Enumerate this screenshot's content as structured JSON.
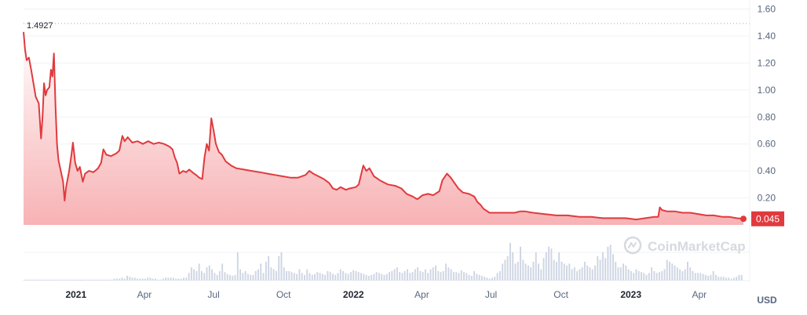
{
  "colors": {
    "line": "#e03a3e",
    "badge": "#e03a3e",
    "volume": "#cfd6e4",
    "grid": "#eff2f5"
  },
  "chart_data": {
    "type": "area",
    "x_axis_labels": [
      {
        "label": "2021",
        "year": true,
        "date": "2021-01-01"
      },
      {
        "label": "Apr",
        "year": false,
        "date": "2021-04-01"
      },
      {
        "label": "Jul",
        "year": false,
        "date": "2021-07-01"
      },
      {
        "label": "Oct",
        "year": false,
        "date": "2021-10-01"
      },
      {
        "label": "2022",
        "year": true,
        "date": "2022-01-01"
      },
      {
        "label": "Apr",
        "year": false,
        "date": "2022-04-01"
      },
      {
        "label": "Jul",
        "year": false,
        "date": "2022-07-01"
      },
      {
        "label": "Oct",
        "year": false,
        "date": "2022-10-01"
      },
      {
        "label": "2023",
        "year": true,
        "date": "2023-01-01"
      },
      {
        "label": "Apr",
        "year": false,
        "date": "2023-04-01"
      }
    ],
    "y_ticks": [
      0.2,
      0.4,
      0.6,
      0.8,
      1.0,
      1.2,
      1.4,
      1.6
    ],
    "y_tick_labels": [
      "0.20",
      "0.40",
      "0.60",
      "0.80",
      "1.00",
      "1.20",
      "1.40",
      "1.60"
    ],
    "ylim": [
      0,
      1.6
    ],
    "xlim": [
      "2020-10-24",
      "2023-05-29"
    ],
    "unit": "USD",
    "max_marker": {
      "value": 1.4927,
      "label": "1.4927"
    },
    "last_value": {
      "value": 0.045,
      "label": "0.045"
    },
    "grid": true,
    "series": [
      {
        "type": "line",
        "points": [
          [
            "2020-10-24",
            1.43
          ],
          [
            "2020-10-26",
            1.3
          ],
          [
            "2020-10-28",
            1.22
          ],
          [
            "2020-10-31",
            1.24
          ],
          [
            "2020-11-03",
            1.15
          ],
          [
            "2020-11-06",
            1.05
          ],
          [
            "2020-11-09",
            0.95
          ],
          [
            "2020-11-13",
            0.9
          ],
          [
            "2020-11-16",
            0.64
          ],
          [
            "2020-11-18",
            0.8
          ],
          [
            "2020-11-20",
            1.05
          ],
          [
            "2020-11-22",
            0.96
          ],
          [
            "2020-11-24",
            1.0
          ],
          [
            "2020-11-27",
            1.02
          ],
          [
            "2020-11-29",
            1.15
          ],
          [
            "2020-12-01",
            1.1
          ],
          [
            "2020-12-03",
            1.27
          ],
          [
            "2020-12-05",
            0.88
          ],
          [
            "2020-12-07",
            0.6
          ],
          [
            "2020-12-09",
            0.48
          ],
          [
            "2020-12-12",
            0.4
          ],
          [
            "2020-12-15",
            0.32
          ],
          [
            "2020-12-17",
            0.18
          ],
          [
            "2020-12-19",
            0.28
          ],
          [
            "2020-12-23",
            0.4
          ],
          [
            "2020-12-26",
            0.52
          ],
          [
            "2020-12-28",
            0.61
          ],
          [
            "2020-12-31",
            0.46
          ],
          [
            "2021-01-03",
            0.4
          ],
          [
            "2021-01-06",
            0.43
          ],
          [
            "2021-01-10",
            0.32
          ],
          [
            "2021-01-13",
            0.38
          ],
          [
            "2021-01-18",
            0.4
          ],
          [
            "2021-01-24",
            0.39
          ],
          [
            "2021-01-30",
            0.42
          ],
          [
            "2021-02-03",
            0.46
          ],
          [
            "2021-02-06",
            0.56
          ],
          [
            "2021-02-10",
            0.52
          ],
          [
            "2021-02-16",
            0.51
          ],
          [
            "2021-02-23",
            0.53
          ],
          [
            "2021-02-27",
            0.55
          ],
          [
            "2021-03-03",
            0.66
          ],
          [
            "2021-03-06",
            0.62
          ],
          [
            "2021-03-10",
            0.65
          ],
          [
            "2021-03-16",
            0.61
          ],
          [
            "2021-03-23",
            0.62
          ],
          [
            "2021-03-30",
            0.6
          ],
          [
            "2021-04-06",
            0.62
          ],
          [
            "2021-04-13",
            0.6
          ],
          [
            "2021-04-20",
            0.61
          ],
          [
            "2021-04-27",
            0.6
          ],
          [
            "2021-05-04",
            0.58
          ],
          [
            "2021-05-08",
            0.56
          ],
          [
            "2021-05-11",
            0.5
          ],
          [
            "2021-05-14",
            0.46
          ],
          [
            "2021-05-17",
            0.38
          ],
          [
            "2021-05-22",
            0.4
          ],
          [
            "2021-05-26",
            0.39
          ],
          [
            "2021-05-30",
            0.41
          ],
          [
            "2021-06-03",
            0.39
          ],
          [
            "2021-06-08",
            0.37
          ],
          [
            "2021-06-12",
            0.35
          ],
          [
            "2021-06-16",
            0.34
          ],
          [
            "2021-06-19",
            0.5
          ],
          [
            "2021-06-22",
            0.6
          ],
          [
            "2021-06-25",
            0.55
          ],
          [
            "2021-06-28",
            0.79
          ],
          [
            "2021-07-01",
            0.7
          ],
          [
            "2021-07-04",
            0.6
          ],
          [
            "2021-07-08",
            0.54
          ],
          [
            "2021-07-12",
            0.52
          ],
          [
            "2021-07-17",
            0.47
          ],
          [
            "2021-07-24",
            0.44
          ],
          [
            "2021-07-31",
            0.42
          ],
          [
            "2021-08-10",
            0.41
          ],
          [
            "2021-08-20",
            0.4
          ],
          [
            "2021-08-31",
            0.39
          ],
          [
            "2021-09-10",
            0.38
          ],
          [
            "2021-09-20",
            0.37
          ],
          [
            "2021-09-30",
            0.36
          ],
          [
            "2021-10-10",
            0.35
          ],
          [
            "2021-10-20",
            0.35
          ],
          [
            "2021-10-30",
            0.37
          ],
          [
            "2021-11-04",
            0.4
          ],
          [
            "2021-11-09",
            0.38
          ],
          [
            "2021-11-16",
            0.36
          ],
          [
            "2021-11-23",
            0.34
          ],
          [
            "2021-11-30",
            0.31
          ],
          [
            "2021-12-05",
            0.27
          ],
          [
            "2021-12-10",
            0.26
          ],
          [
            "2021-12-15",
            0.28
          ],
          [
            "2021-12-22",
            0.26
          ],
          [
            "2021-12-27",
            0.27
          ],
          [
            "2022-01-04",
            0.28
          ],
          [
            "2022-01-08",
            0.3
          ],
          [
            "2022-01-14",
            0.44
          ],
          [
            "2022-01-18",
            0.4
          ],
          [
            "2022-01-22",
            0.42
          ],
          [
            "2022-01-28",
            0.36
          ],
          [
            "2022-02-05",
            0.33
          ],
          [
            "2022-02-15",
            0.3
          ],
          [
            "2022-02-25",
            0.29
          ],
          [
            "2022-03-05",
            0.27
          ],
          [
            "2022-03-12",
            0.23
          ],
          [
            "2022-03-20",
            0.21
          ],
          [
            "2022-03-26",
            0.19
          ],
          [
            "2022-04-02",
            0.22
          ],
          [
            "2022-04-09",
            0.23
          ],
          [
            "2022-04-16",
            0.22
          ],
          [
            "2022-04-24",
            0.25
          ],
          [
            "2022-04-28",
            0.33
          ],
          [
            "2022-05-04",
            0.38
          ],
          [
            "2022-05-09",
            0.35
          ],
          [
            "2022-05-14",
            0.31
          ],
          [
            "2022-05-19",
            0.27
          ],
          [
            "2022-05-25",
            0.24
          ],
          [
            "2022-06-02",
            0.23
          ],
          [
            "2022-06-09",
            0.21
          ],
          [
            "2022-06-13",
            0.17
          ],
          [
            "2022-06-17",
            0.15
          ],
          [
            "2022-06-21",
            0.12
          ],
          [
            "2022-06-29",
            0.09
          ],
          [
            "2022-07-09",
            0.09
          ],
          [
            "2022-07-20",
            0.09
          ],
          [
            "2022-08-01",
            0.09
          ],
          [
            "2022-08-08",
            0.1
          ],
          [
            "2022-08-15",
            0.1
          ],
          [
            "2022-08-25",
            0.09
          ],
          [
            "2022-09-10",
            0.08
          ],
          [
            "2022-09-25",
            0.07
          ],
          [
            "2022-10-10",
            0.07
          ],
          [
            "2022-10-25",
            0.06
          ],
          [
            "2022-11-10",
            0.06
          ],
          [
            "2022-11-25",
            0.05
          ],
          [
            "2022-12-10",
            0.05
          ],
          [
            "2022-12-25",
            0.05
          ],
          [
            "2023-01-08",
            0.04
          ],
          [
            "2023-01-20",
            0.05
          ],
          [
            "2023-02-01",
            0.06
          ],
          [
            "2023-02-06",
            0.06
          ],
          [
            "2023-02-08",
            0.13
          ],
          [
            "2023-02-11",
            0.11
          ],
          [
            "2023-02-18",
            0.1
          ],
          [
            "2023-02-28",
            0.1
          ],
          [
            "2023-03-10",
            0.09
          ],
          [
            "2023-03-20",
            0.09
          ],
          [
            "2023-03-31",
            0.08
          ],
          [
            "2023-04-10",
            0.07
          ],
          [
            "2023-04-20",
            0.07
          ],
          [
            "2023-05-01",
            0.06
          ],
          [
            "2023-05-10",
            0.06
          ],
          [
            "2023-05-20",
            0.05
          ],
          [
            "2023-05-29",
            0.045
          ]
        ]
      }
    ],
    "volume_bars": [
      1,
      1,
      1,
      1,
      1,
      1,
      1,
      1,
      1,
      1,
      1,
      1,
      1,
      1,
      1,
      1,
      1,
      1,
      1,
      1,
      1,
      1,
      1,
      1,
      1,
      1,
      1,
      1,
      1,
      1,
      1,
      1,
      1,
      1,
      1,
      2,
      2,
      2,
      3,
      2,
      5,
      4,
      3,
      3,
      2,
      2,
      2,
      2,
      3,
      3,
      2,
      2,
      1,
      1,
      2,
      3,
      3,
      3,
      3,
      2,
      2,
      2,
      3,
      3,
      8,
      14,
      12,
      10,
      18,
      10,
      8,
      14,
      16,
      12,
      8,
      6,
      10,
      18,
      9,
      7,
      6,
      5,
      6,
      30,
      12,
      8,
      10,
      7,
      6,
      6,
      10,
      12,
      18,
      8,
      20,
      26,
      14,
      12,
      10,
      26,
      30,
      14,
      10,
      10,
      9,
      8,
      7,
      12,
      8,
      6,
      12,
      8,
      6,
      7,
      9,
      8,
      7,
      6,
      10,
      9,
      7,
      6,
      8,
      12,
      10,
      8,
      7,
      9,
      11,
      10,
      9,
      8,
      7,
      6,
      5,
      6,
      7,
      9,
      8,
      7,
      6,
      7,
      9,
      10,
      12,
      14,
      9,
      8,
      10,
      12,
      8,
      9,
      12,
      14,
      10,
      9,
      12,
      8,
      12,
      14,
      16,
      10,
      9,
      10,
      18,
      14,
      12,
      9,
      9,
      8,
      11,
      9,
      8,
      6,
      5,
      10,
      7,
      6,
      5,
      4,
      3,
      2,
      3,
      4,
      8,
      10,
      18,
      22,
      26,
      40,
      30,
      18,
      20,
      36,
      22,
      18,
      16,
      14,
      20,
      30,
      18,
      12,
      24,
      30,
      36,
      34,
      22,
      20,
      30,
      20,
      18,
      16,
      18,
      12,
      14,
      10,
      12,
      14,
      20,
      16,
      14,
      12,
      16,
      26,
      22,
      30,
      24,
      36,
      38,
      28,
      20,
      14,
      14,
      18,
      16,
      12,
      10,
      8,
      12,
      10,
      9,
      8,
      6,
      8,
      14,
      10,
      8,
      9,
      10,
      12,
      22,
      20,
      18,
      16,
      14,
      12,
      10,
      12,
      20,
      14,
      10,
      8,
      8,
      8,
      7,
      6,
      5,
      6,
      10,
      6,
      4,
      4,
      4,
      3,
      3,
      2,
      3,
      4,
      6,
      6
    ]
  },
  "watermark": {
    "text": "CoinMarketCap"
  }
}
